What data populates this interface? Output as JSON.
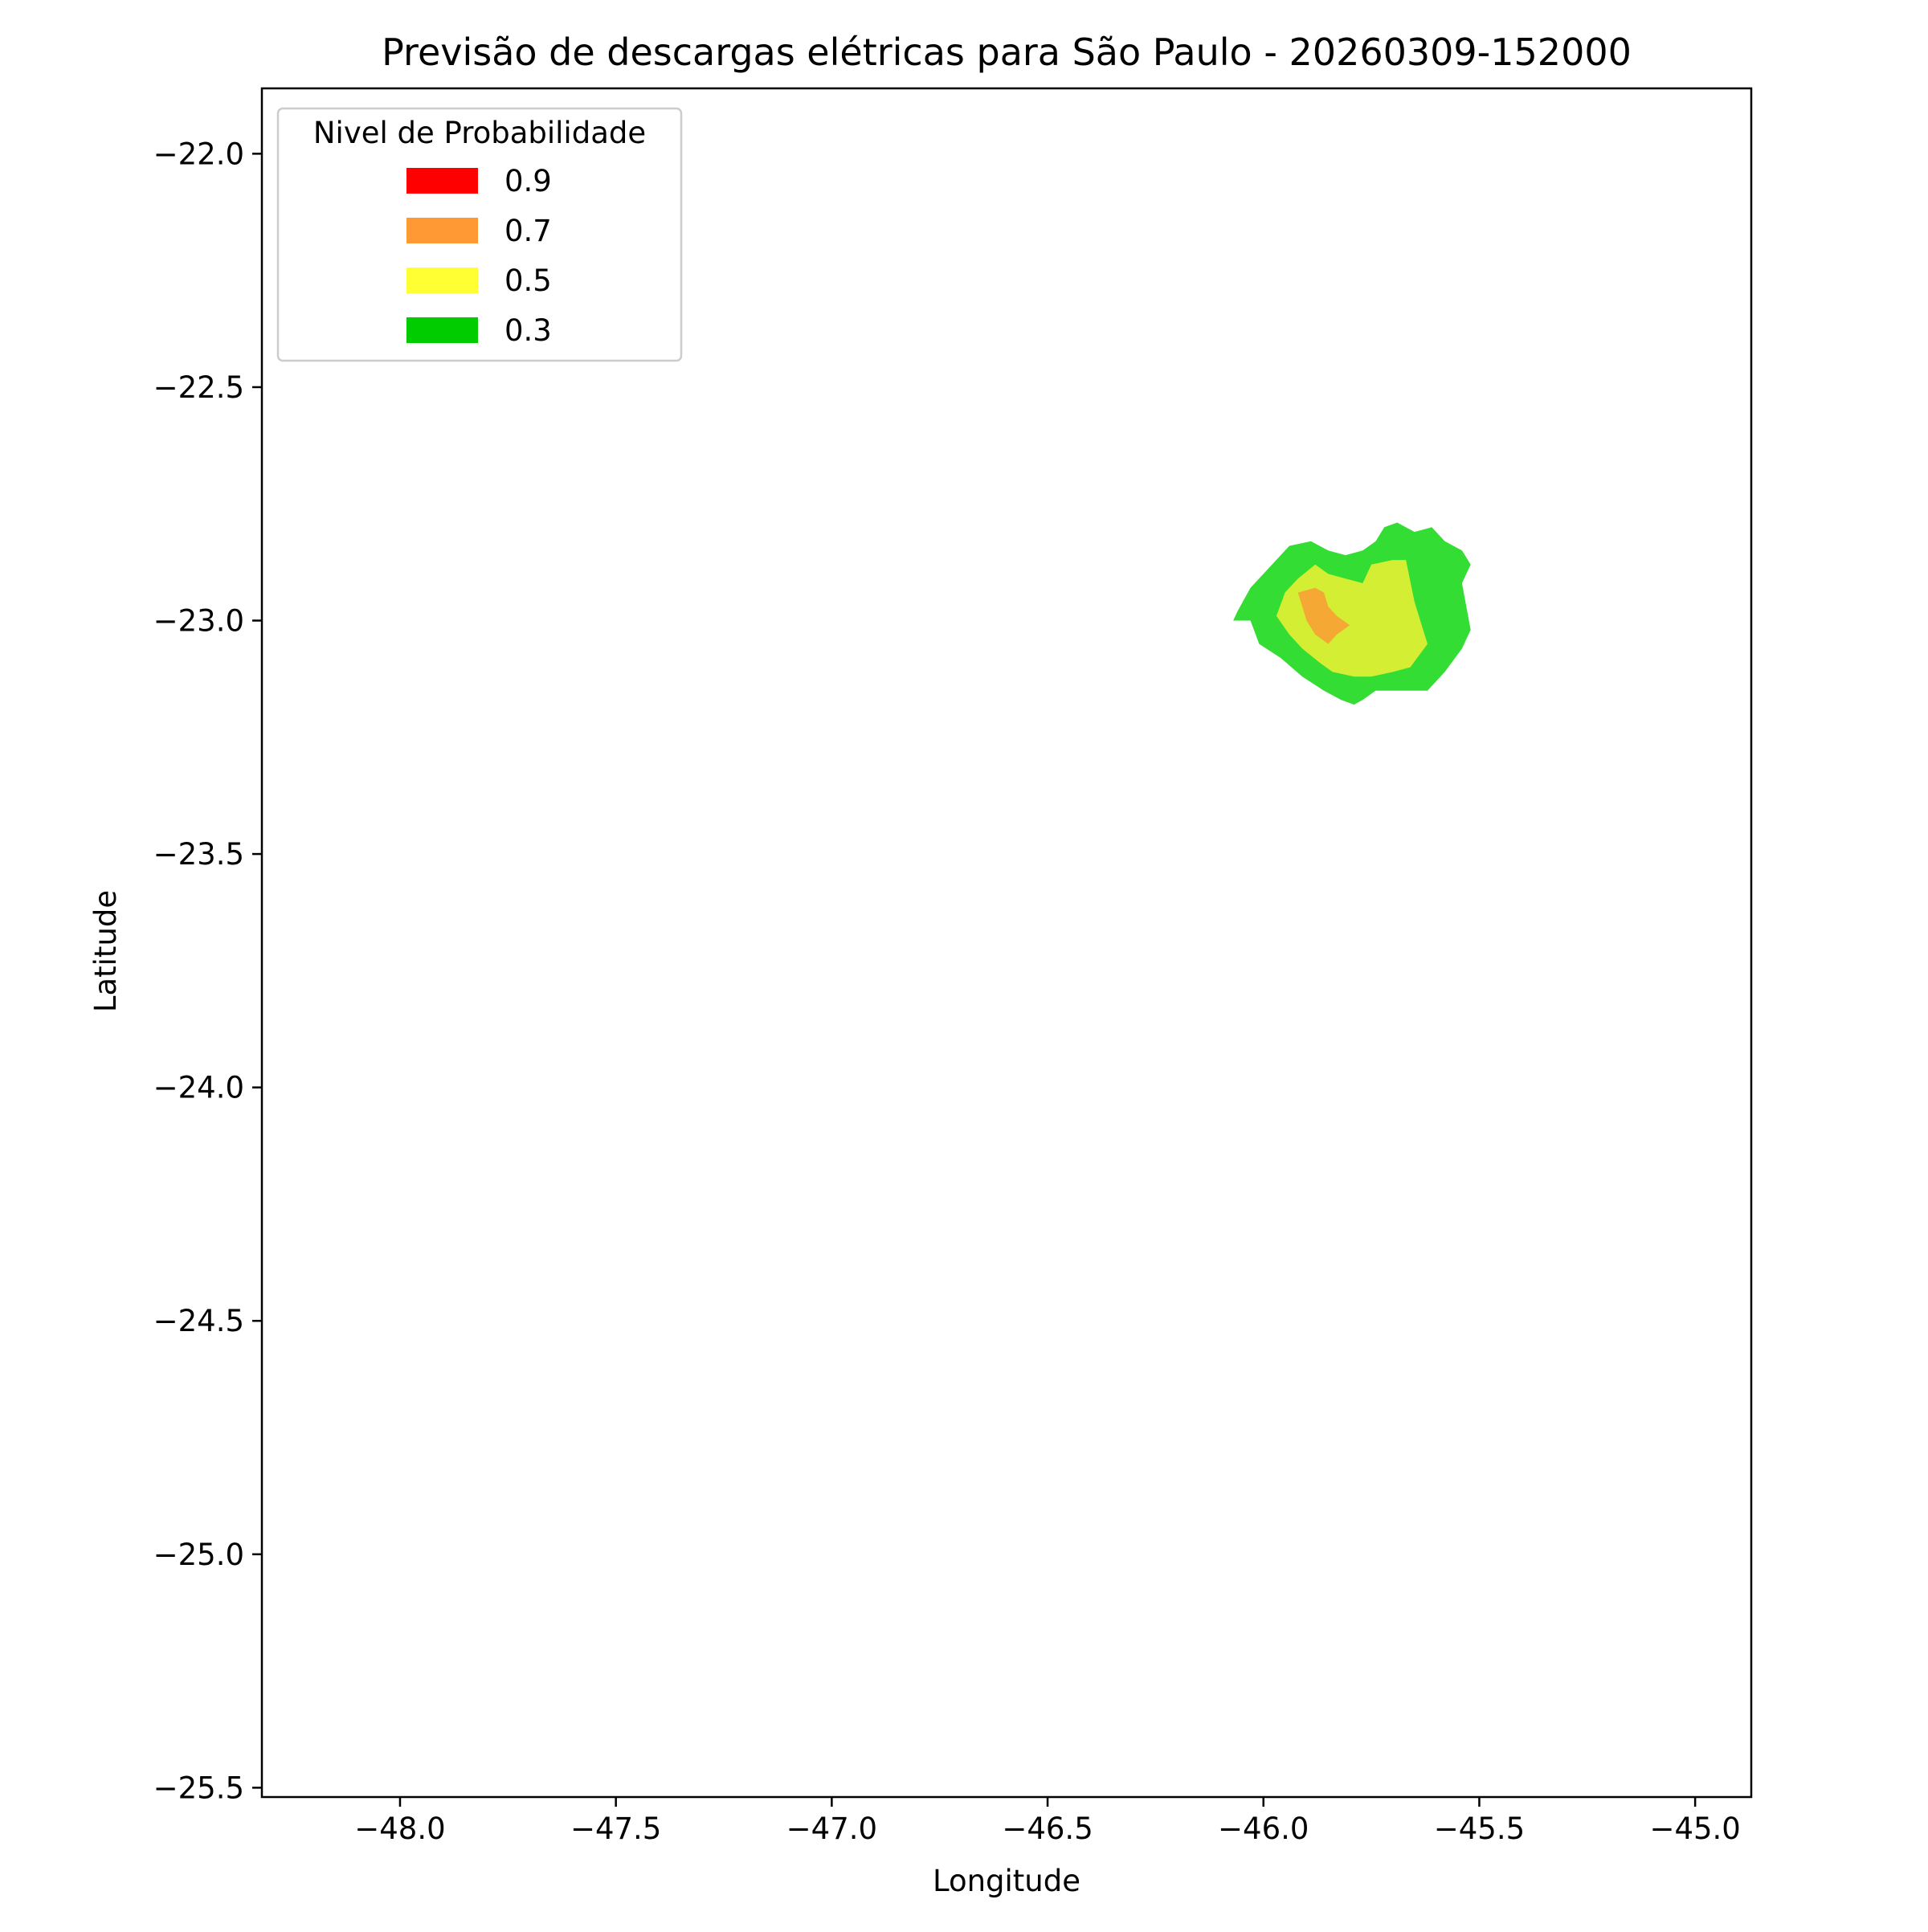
{
  "chart_data": {
    "type": "filled-contour",
    "title": "Previsão de descargas elétricas para São Paulo - 20260309-152000",
    "xlabel": "Longitude",
    "ylabel": "Latitude",
    "xlim": [
      -48.32,
      -44.87
    ],
    "ylim": [
      -25.52,
      -21.86
    ],
    "xticks": [
      -48.0,
      -47.5,
      -47.0,
      -46.5,
      -46.0,
      -45.5,
      -45.0
    ],
    "yticks": [
      -22.0,
      -22.5,
      -23.0,
      -23.5,
      -24.0,
      -24.5,
      -25.0,
      -25.5
    ],
    "xtick_labels": [
      "−48.0",
      "−47.5",
      "−47.0",
      "−46.5",
      "−46.0",
      "−45.5",
      "−45.0"
    ],
    "ytick_labels": [
      "−22.0",
      "−22.5",
      "−23.0",
      "−23.5",
      "−24.0",
      "−24.5",
      "−25.0",
      "−25.5"
    ],
    "grid": false,
    "legend": {
      "title": "Nivel de Probabilidade",
      "placement": "upper-left",
      "entries": [
        {
          "label": "0.9",
          "color": "#ff0000"
        },
        {
          "label": "0.7",
          "color": "#ff9933"
        },
        {
          "label": "0.5",
          "color": "#ffff33"
        },
        {
          "label": "0.3",
          "color": "#00cc00"
        }
      ]
    },
    "regions": [
      {
        "level": "0.3",
        "color": "#33dd33",
        "polygon": [
          [
            -46.06,
            -22.98
          ],
          [
            -46.03,
            -22.93
          ],
          [
            -45.98,
            -22.88
          ],
          [
            -45.94,
            -22.84
          ],
          [
            -45.89,
            -22.83
          ],
          [
            -45.85,
            -22.85
          ],
          [
            -45.81,
            -22.86
          ],
          [
            -45.77,
            -22.85
          ],
          [
            -45.74,
            -22.83
          ],
          [
            -45.72,
            -22.8
          ],
          [
            -45.69,
            -22.79
          ],
          [
            -45.65,
            -22.81
          ],
          [
            -45.61,
            -22.8
          ],
          [
            -45.58,
            -22.83
          ],
          [
            -45.54,
            -22.85
          ],
          [
            -45.52,
            -22.88
          ],
          [
            -45.54,
            -22.92
          ],
          [
            -45.53,
            -22.97
          ],
          [
            -45.52,
            -23.02
          ],
          [
            -45.54,
            -23.06
          ],
          [
            -45.58,
            -23.11
          ],
          [
            -45.62,
            -23.15
          ],
          [
            -45.68,
            -23.15
          ],
          [
            -45.74,
            -23.15
          ],
          [
            -45.77,
            -23.17
          ],
          [
            -45.79,
            -23.18
          ],
          [
            -45.82,
            -23.17
          ],
          [
            -45.86,
            -23.15
          ],
          [
            -45.91,
            -23.12
          ],
          [
            -45.96,
            -23.08
          ],
          [
            -46.01,
            -23.05
          ],
          [
            -46.03,
            -23.0
          ],
          [
            -46.07,
            -23.0
          ]
        ]
      },
      {
        "level": "0.5",
        "color": "#d4ee33",
        "polygon": [
          [
            -45.97,
            -22.99
          ],
          [
            -45.95,
            -22.94
          ],
          [
            -45.92,
            -22.91
          ],
          [
            -45.88,
            -22.88
          ],
          [
            -45.85,
            -22.9
          ],
          [
            -45.81,
            -22.91
          ],
          [
            -45.77,
            -22.92
          ],
          [
            -45.75,
            -22.88
          ],
          [
            -45.7,
            -22.87
          ],
          [
            -45.67,
            -22.87
          ],
          [
            -45.65,
            -22.96
          ],
          [
            -45.62,
            -23.05
          ],
          [
            -45.66,
            -23.1
          ],
          [
            -45.7,
            -23.11
          ],
          [
            -45.75,
            -23.12
          ],
          [
            -45.79,
            -23.12
          ],
          [
            -45.84,
            -23.11
          ],
          [
            -45.87,
            -23.09
          ],
          [
            -45.91,
            -23.06
          ],
          [
            -45.94,
            -23.03
          ]
        ]
      },
      {
        "level": "0.7",
        "color": "#f5a833",
        "polygon": [
          [
            -45.92,
            -22.94
          ],
          [
            -45.88,
            -22.93
          ],
          [
            -45.86,
            -22.94
          ],
          [
            -45.85,
            -22.97
          ],
          [
            -45.83,
            -22.99
          ],
          [
            -45.8,
            -23.01
          ],
          [
            -45.83,
            -23.03
          ],
          [
            -45.85,
            -23.05
          ],
          [
            -45.88,
            -23.03
          ],
          [
            -45.9,
            -23.0
          ]
        ]
      }
    ]
  }
}
